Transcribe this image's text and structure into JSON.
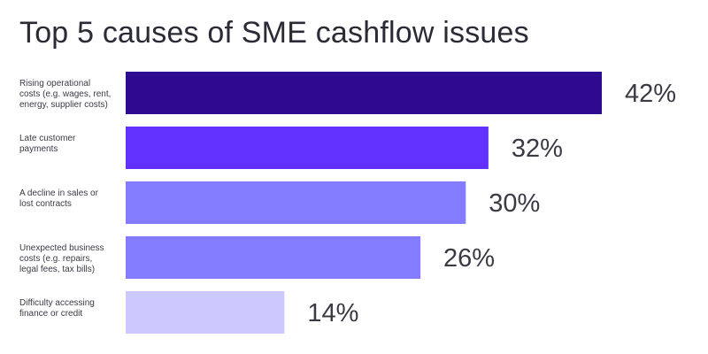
{
  "chart_data": {
    "type": "bar",
    "orientation": "horizontal",
    "title": "Top 5 causes of SME cashflow issues",
    "categories": [
      "Rising operational costs (e.g. wages, rent, energy, supplier costs)",
      "Late customer payments",
      "A decline in sales or lost contracts",
      "Unexpected business costs (e.g. repairs, legal fees, tax bills)",
      "Difficulty accessing finance or credit"
    ],
    "category_label_lines": [
      [
        "Rising operational",
        "costs (e.g. wages, rent,",
        "energy, supplier costs)"
      ],
      [
        "Late customer",
        "payments"
      ],
      [
        "A decline in sales or",
        "lost contracts"
      ],
      [
        "Unexpected business",
        "costs (e.g. repairs,",
        "legal fees, tax bills)"
      ],
      [
        "Difficulty accessing",
        "finance or credit"
      ]
    ],
    "values": [
      42,
      32,
      30,
      26,
      14
    ],
    "value_labels": [
      "42%",
      "32%",
      "30%",
      "26%",
      "14%"
    ],
    "bar_colors": [
      "#2d0a8f",
      "#6231ff",
      "#847cff",
      "#847cff",
      "#ccc9ff"
    ],
    "value_max": 42,
    "xlabel": "",
    "ylabel": "",
    "grid": false,
    "legend": "none"
  }
}
